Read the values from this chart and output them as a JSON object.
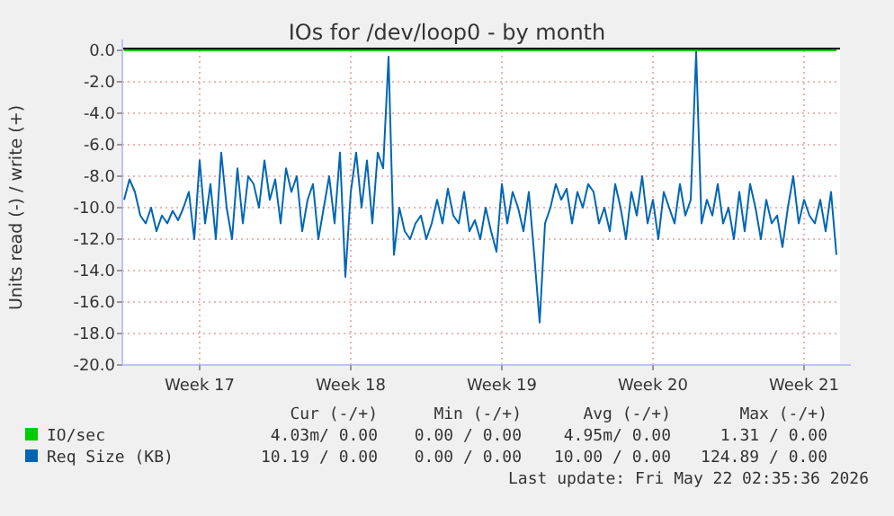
{
  "chart_data": {
    "type": "line",
    "title": "IOs for /dev/loop0 - by month",
    "ylabel": "Units read (-) / write (+)",
    "xlim": [
      "2026-04-19T22:00",
      "2026-05-23T04:00"
    ],
    "xticks": [
      {
        "value": "2026-04-23T12:00",
        "label": "Week 17"
      },
      {
        "value": "2026-04-30T12:00",
        "label": "Week 18"
      },
      {
        "value": "2026-05-07T12:00",
        "label": "Week 19"
      },
      {
        "value": "2026-05-14T12:00",
        "label": "Week 20"
      },
      {
        "value": "2026-05-21T12:00",
        "label": "Week 21"
      }
    ],
    "ylim": [
      -20,
      0
    ],
    "yticks": [
      {
        "value": 0,
        "label": "0.0"
      },
      {
        "value": -2,
        "label": "-2.0"
      },
      {
        "value": -4,
        "label": "-4.0"
      },
      {
        "value": -6,
        "label": "-6.0"
      },
      {
        "value": -8,
        "label": "-8.0"
      },
      {
        "value": -10,
        "label": "-10.0"
      },
      {
        "value": -12,
        "label": "-12.0"
      },
      {
        "value": -14,
        "label": "-14.0"
      },
      {
        "value": -16,
        "label": "-16.0"
      },
      {
        "value": -18,
        "label": "-18.0"
      },
      {
        "value": -20,
        "label": "-20.0"
      }
    ],
    "grid": true,
    "legend": "bottom",
    "marker": "none",
    "line_style": "solid",
    "series": [
      {
        "name": "IO/sec",
        "color": "#00cc00",
        "x": [
          "2026-04-20T00:00",
          "2026-05-23T00:00"
        ],
        "values": [
          0,
          0
        ]
      },
      {
        "name": "Req Size (KB)",
        "color": "#0066b3",
        "x": [
          "2026-04-20T00:00",
          "2026-04-20T06:00",
          "2026-04-20T12:00",
          "2026-04-20T18:00",
          "2026-04-21T00:00",
          "2026-04-21T06:00",
          "2026-04-21T12:00",
          "2026-04-21T18:00",
          "2026-04-22T00:00",
          "2026-04-22T06:00",
          "2026-04-22T12:00",
          "2026-04-22T18:00",
          "2026-04-23T00:00",
          "2026-04-23T06:00",
          "2026-04-23T12:00",
          "2026-04-23T18:00",
          "2026-04-24T00:00",
          "2026-04-24T06:00",
          "2026-04-24T12:00",
          "2026-04-24T18:00",
          "2026-04-25T00:00",
          "2026-04-25T06:00",
          "2026-04-25T12:00",
          "2026-04-25T18:00",
          "2026-04-26T00:00",
          "2026-04-26T06:00",
          "2026-04-26T12:00",
          "2026-04-26T18:00",
          "2026-04-27T00:00",
          "2026-04-27T06:00",
          "2026-04-27T12:00",
          "2026-04-27T18:00",
          "2026-04-28T00:00",
          "2026-04-28T06:00",
          "2026-04-28T12:00",
          "2026-04-28T18:00",
          "2026-04-29T00:00",
          "2026-04-29T06:00",
          "2026-04-29T12:00",
          "2026-04-29T18:00",
          "2026-04-30T00:00",
          "2026-04-30T06:00",
          "2026-04-30T12:00",
          "2026-04-30T18:00",
          "2026-05-01T00:00",
          "2026-05-01T06:00",
          "2026-05-01T12:00",
          "2026-05-01T18:00",
          "2026-05-02T00:00",
          "2026-05-02T06:00",
          "2026-05-02T12:00",
          "2026-05-02T18:00",
          "2026-05-03T00:00",
          "2026-05-03T06:00",
          "2026-05-03T12:00",
          "2026-05-03T18:00",
          "2026-05-04T00:00",
          "2026-05-04T06:00",
          "2026-05-04T12:00",
          "2026-05-04T18:00",
          "2026-05-05T00:00",
          "2026-05-05T06:00",
          "2026-05-05T12:00",
          "2026-05-05T18:00",
          "2026-05-06T00:00",
          "2026-05-06T06:00",
          "2026-05-06T12:00",
          "2026-05-06T18:00",
          "2026-05-07T00:00",
          "2026-05-07T06:00",
          "2026-05-07T12:00",
          "2026-05-07T18:00",
          "2026-05-08T00:00",
          "2026-05-08T06:00",
          "2026-05-08T12:00",
          "2026-05-08T18:00",
          "2026-05-09T00:00",
          "2026-05-09T06:00",
          "2026-05-09T12:00",
          "2026-05-09T18:00",
          "2026-05-10T00:00",
          "2026-05-10T06:00",
          "2026-05-10T12:00",
          "2026-05-10T18:00",
          "2026-05-11T00:00",
          "2026-05-11T06:00",
          "2026-05-11T12:00",
          "2026-05-11T18:00",
          "2026-05-12T00:00",
          "2026-05-12T06:00",
          "2026-05-12T12:00",
          "2026-05-12T18:00",
          "2026-05-13T00:00",
          "2026-05-13T06:00",
          "2026-05-13T12:00",
          "2026-05-13T18:00",
          "2026-05-14T00:00",
          "2026-05-14T06:00",
          "2026-05-14T12:00",
          "2026-05-14T18:00",
          "2026-05-15T00:00",
          "2026-05-15T06:00",
          "2026-05-15T12:00",
          "2026-05-15T18:00",
          "2026-05-16T00:00",
          "2026-05-16T06:00",
          "2026-05-16T12:00",
          "2026-05-16T18:00",
          "2026-05-17T00:00",
          "2026-05-17T06:00",
          "2026-05-17T12:00",
          "2026-05-17T18:00",
          "2026-05-18T00:00",
          "2026-05-18T06:00",
          "2026-05-18T12:00",
          "2026-05-18T18:00",
          "2026-05-19T00:00",
          "2026-05-19T06:00",
          "2026-05-19T12:00",
          "2026-05-19T18:00",
          "2026-05-20T00:00",
          "2026-05-20T06:00",
          "2026-05-20T12:00",
          "2026-05-20T18:00",
          "2026-05-21T00:00",
          "2026-05-21T06:00",
          "2026-05-21T12:00",
          "2026-05-21T18:00",
          "2026-05-22T00:00",
          "2026-05-22T06:00",
          "2026-05-22T12:00",
          "2026-05-22T18:00",
          "2026-05-23T00:00"
        ],
        "values": [
          -9.5,
          -8.2,
          -9,
          -10.5,
          -11,
          -10,
          -11.5,
          -10.5,
          -11,
          -10.2,
          -10.8,
          -10,
          -9,
          -12,
          -7,
          -11,
          -8.5,
          -12,
          -6.5,
          -10,
          -12,
          -7.5,
          -11,
          -8,
          -8.5,
          -10,
          -7,
          -9.5,
          -8.2,
          -11,
          -7.5,
          -9,
          -8,
          -11.5,
          -9.5,
          -8.5,
          -12,
          -10,
          -8,
          -11,
          -6.5,
          -14.4,
          -9,
          -6.5,
          -10,
          -7,
          -11,
          -6.5,
          -7.5,
          -0.4,
          -13,
          -10,
          -11.5,
          -12,
          -11,
          -10.5,
          -12,
          -11,
          -9.5,
          -11,
          -8.8,
          -10.5,
          -11,
          -9,
          -11.5,
          -10.8,
          -12,
          -10,
          -11.5,
          -12.8,
          -8.5,
          -11,
          -9,
          -10,
          -11.5,
          -9,
          -13,
          -17.3,
          -11,
          -10,
          -8.5,
          -9.5,
          -8.8,
          -11,
          -9,
          -10,
          -8.5,
          -9,
          -11,
          -10,
          -11.5,
          -8.5,
          -10,
          -12,
          -9,
          -10.5,
          -8,
          -11,
          -9.5,
          -12,
          -9,
          -10,
          -11,
          -8.5,
          -10.5,
          -9.5,
          -0.1,
          -11,
          -9.5,
          -10.5,
          -8.5,
          -11,
          -10,
          -12,
          -9,
          -11.5,
          -8.5,
          -10,
          -12,
          -9.5,
          -11,
          -10.5,
          -12.5,
          -10,
          -8,
          -11,
          -9.5,
          -10.5,
          -11,
          -9.5,
          -11.5,
          -9,
          -13
        ]
      }
    ],
    "annotations": [
      "Cur (-/+)",
      "Min (-/+)",
      "Avg (-/+)",
      "Max (-/+)",
      "4.03m/ 0.00",
      "0.00 / 0.00",
      "4.95m/ 0.00",
      "1.31 / 0.00",
      "10.19 / 0.00",
      "0.00 / 0.00",
      "10.00 / 0.00",
      "124.89 / 0.00",
      "Last update: Fri May 22 02:35:36 2026"
    ]
  }
}
